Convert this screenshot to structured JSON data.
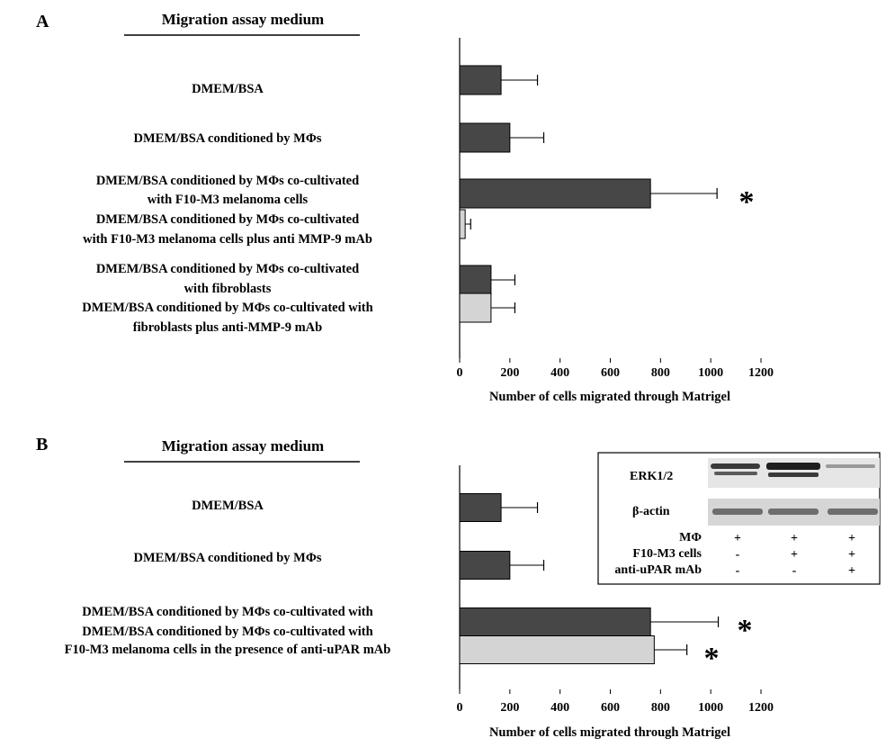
{
  "colors": {
    "dark_bar": "#474747",
    "light_bar": "#d4d4d4",
    "axis": "#000000"
  },
  "chart_data": [
    {
      "panel": "A",
      "type": "bar",
      "orientation": "horizontal",
      "heading": "Migration assay medium",
      "categories": [
        [
          "DMEM/BSA"
        ],
        [
          "DMEM/BSA conditioned by MΦs"
        ],
        [
          "DMEM/BSA conditioned by MΦs co-cultivated",
          "with F10-M3 melanoma cells"
        ],
        [
          "DMEM/BSA conditioned by MΦs co-cultivated",
          "with F10-M3 melanoma cells plus anti MMP-9 mAb"
        ],
        [
          "DMEM/BSA conditioned by MΦs co-cultivated",
          "with fibroblasts"
        ],
        [
          "DMEM/BSA conditioned by MΦs co-cultivated with",
          "fibroblasts plus anti-MMP-9 mAb"
        ]
      ],
      "values": [
        165,
        200,
        760,
        22,
        125,
        125
      ],
      "errors": [
        145,
        135,
        265,
        22,
        95,
        95
      ],
      "bar_colors": [
        "dark",
        "dark",
        "dark",
        "light",
        "dark",
        "light"
      ],
      "significant": [
        false,
        false,
        true,
        false,
        false,
        false
      ],
      "significance_marker": "*",
      "xlabel": "Number of cells migrated through Matrigel",
      "xlim": [
        0,
        1200
      ],
      "xticks": [
        "0",
        "200",
        "400",
        "600",
        "800",
        "1000",
        "1200"
      ]
    },
    {
      "panel": "B",
      "type": "bar",
      "orientation": "horizontal",
      "heading": "Migration assay medium",
      "categories": [
        [
          "DMEM/BSA"
        ],
        [
          "DMEM/BSA conditioned by MΦs"
        ],
        [
          "DMEM/BSA conditioned by MΦs co-cultivated with",
          "F10-M3 melanoma cells"
        ],
        [
          "DMEM/BSA conditioned by MΦs co-cultivated with",
          "F10-M3 melanoma cells in the presence of anti-uPAR mAb"
        ]
      ],
      "values": [
        165,
        200,
        760,
        775
      ],
      "errors": [
        145,
        135,
        270,
        130
      ],
      "bar_colors": [
        "dark",
        "dark",
        "dark",
        "light"
      ],
      "significant": [
        false,
        false,
        true,
        true
      ],
      "significance_marker": "*",
      "xlabel": "Number of cells migrated through Matrigel",
      "xlim": [
        0,
        1200
      ],
      "xticks": [
        "0",
        "200",
        "400",
        "600",
        "800",
        "1000",
        "1200"
      ]
    }
  ],
  "inset": {
    "blot_labels": [
      "ERK1/2",
      "β-actin"
    ],
    "rows": [
      {
        "label": "MΦ",
        "marks": [
          "+",
          "+",
          "+"
        ]
      },
      {
        "label": "F10-M3 cells",
        "marks": [
          "-",
          "+",
          "+"
        ]
      },
      {
        "label": "anti-uPAR mAb",
        "marks": [
          "-",
          "-",
          "+"
        ]
      }
    ]
  }
}
